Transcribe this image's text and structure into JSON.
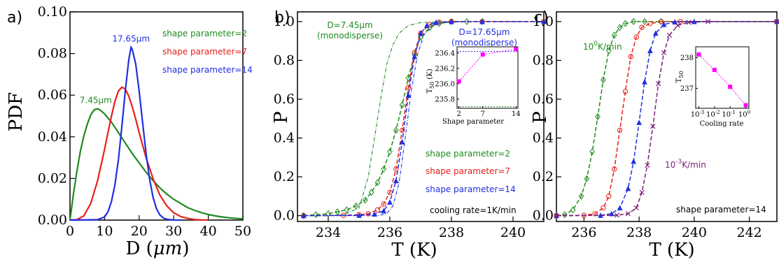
{
  "colors": {
    "green": "#1f8a1f",
    "red": "#e8201a",
    "blue": "#1f2fe0",
    "purple": "#7a1f7a",
    "magenta": "#ff00ff"
  },
  "chart_data": [
    {
      "panel_label": "a)",
      "type": "line",
      "xlabel_prefix": "D (",
      "xlabel_unit": "μm",
      "xlabel_suffix": ")",
      "ylabel": "PDF",
      "xlim": [
        0,
        50
      ],
      "ylim": [
        0,
        0.1
      ],
      "xticks": [
        0,
        10,
        20,
        30,
        40,
        50
      ],
      "yticks": [
        "0.00",
        "0.02",
        "0.04",
        "0.06",
        "0.08",
        "0.10"
      ],
      "yticks_values": [
        0,
        0.02,
        0.04,
        0.06,
        0.08,
        0.1
      ],
      "series": [
        {
          "name": "shape parameter=2",
          "color": "green",
          "x": [
            0,
            1,
            2,
            3,
            4,
            5,
            6,
            7,
            8,
            9,
            10,
            12,
            14,
            16,
            18,
            20,
            22,
            24,
            26,
            28,
            30,
            32,
            34,
            36,
            38,
            40,
            42,
            44,
            46,
            48,
            50
          ],
          "y": [
            0,
            0.0125,
            0.0235,
            0.033,
            0.0405,
            0.046,
            0.0505,
            0.053,
            0.0535,
            0.0525,
            0.051,
            0.047,
            0.042,
            0.037,
            0.032,
            0.0275,
            0.023,
            0.019,
            0.0155,
            0.0125,
            0.01,
            0.008,
            0.006,
            0.0047,
            0.0036,
            0.0027,
            0.002,
            0.0015,
            0.0011,
            0.0008,
            0.0006
          ]
        },
        {
          "name": "shape parameter=7",
          "color": "red",
          "x": [
            0,
            2,
            4,
            6,
            8,
            10,
            11,
            12,
            13,
            14,
            15,
            16,
            17,
            18,
            19,
            20,
            22,
            24,
            26,
            28,
            30,
            32,
            34,
            36,
            38,
            40
          ],
          "y": [
            0,
            0.0002,
            0.002,
            0.008,
            0.019,
            0.034,
            0.042,
            0.05,
            0.057,
            0.062,
            0.0638,
            0.063,
            0.0595,
            0.0545,
            0.0485,
            0.042,
            0.03,
            0.02,
            0.012,
            0.0068,
            0.0035,
            0.0017,
            0.0008,
            0.0003,
            0.0001,
            0
          ]
        },
        {
          "name": "shape parameter=14",
          "color": "blue",
          "x": [
            0,
            8,
            10,
            11,
            12,
            13,
            14,
            15,
            16,
            17,
            17.65,
            18,
            19,
            20,
            21,
            22,
            23,
            24,
            25,
            26,
            27,
            28,
            30,
            32
          ],
          "y": [
            0,
            0.0002,
            0.0015,
            0.004,
            0.009,
            0.017,
            0.029,
            0.045,
            0.062,
            0.077,
            0.083,
            0.082,
            0.075,
            0.062,
            0.047,
            0.032,
            0.02,
            0.011,
            0.0055,
            0.0025,
            0.001,
            0.0004,
            5e-05,
            0
          ]
        }
      ],
      "legend": [
        "shape parameter=2",
        "shape parameter=7",
        "shape parameter=14"
      ],
      "annotations": [
        {
          "text": "7.45μm",
          "color": "green",
          "x": 7.45,
          "y": 0.0535
        },
        {
          "text": "17.65μm",
          "color": "blue",
          "x": 17.65,
          "y": 0.083
        }
      ]
    },
    {
      "panel_label": "b)",
      "type": "line",
      "xlabel": "T (K)",
      "ylabel": "P",
      "xlim": [
        233,
        241
      ],
      "ylim": [
        -0.03,
        1.05
      ],
      "xticks": [
        234,
        236,
        238,
        240
      ],
      "yticks": [
        "0.0",
        "0.2",
        "0.4",
        "0.6",
        "0.8",
        "1.0"
      ],
      "yticks_values": [
        0,
        0.2,
        0.4,
        0.6,
        0.8,
        1.0
      ],
      "series": [
        {
          "name": "D=7.45μm (monodisperse)",
          "color": "green",
          "style": "dashdot",
          "x": [
            233.2,
            234.0,
            234.5,
            235.0,
            235.3,
            235.5,
            235.7,
            235.9,
            236.1,
            236.3,
            236.6,
            237.0,
            238.0,
            241.0
          ],
          "y": [
            0,
            0,
            0.005,
            0.04,
            0.2,
            0.4,
            0.6,
            0.78,
            0.88,
            0.94,
            0.98,
            0.995,
            1.0,
            1.0
          ]
        },
        {
          "name": "D=17.65μm (monodisperse)",
          "color": "blue",
          "style": "dashdot",
          "x": [
            233.2,
            235.6,
            235.9,
            236.1,
            236.3,
            236.5,
            236.7,
            236.9,
            237.1,
            237.4,
            237.8,
            238.5,
            241.0
          ],
          "y": [
            0,
            0,
            0.01,
            0.05,
            0.17,
            0.4,
            0.65,
            0.83,
            0.93,
            0.98,
            0.995,
            1.0,
            1.0
          ]
        },
        {
          "name": "shape parameter=2",
          "color": "green",
          "marker": "diamond",
          "x": [
            233.2,
            233.6,
            234.0,
            234.3,
            234.6,
            234.9,
            235.2,
            235.4,
            235.6,
            235.8,
            236.0,
            236.2,
            236.4,
            236.6,
            236.8,
            237.0,
            237.3,
            237.6,
            238.0,
            238.5,
            239.0,
            241.0
          ],
          "y": [
            0,
            0.005,
            0.01,
            0.02,
            0.03,
            0.05,
            0.08,
            0.12,
            0.17,
            0.24,
            0.33,
            0.44,
            0.57,
            0.71,
            0.83,
            0.92,
            0.97,
            0.99,
            1.0,
            1.0,
            1.0,
            1.0
          ]
        },
        {
          "name": "shape parameter=7",
          "color": "red",
          "marker": "circle",
          "x": [
            233.2,
            234.5,
            235.0,
            235.3,
            235.6,
            235.8,
            236.0,
            236.2,
            236.4,
            236.6,
            236.8,
            237.0,
            237.3,
            237.6,
            238.0,
            239.0,
            241.0
          ],
          "y": [
            0,
            0.002,
            0.005,
            0.01,
            0.03,
            0.06,
            0.12,
            0.24,
            0.44,
            0.66,
            0.84,
            0.94,
            0.985,
            0.997,
            1.0,
            1.0,
            1.0
          ]
        },
        {
          "name": "shape parameter=14",
          "color": "blue",
          "marker": "triangle",
          "x": [
            233.2,
            235.0,
            235.5,
            235.8,
            236.0,
            236.2,
            236.4,
            236.6,
            236.8,
            237.0,
            237.2,
            237.5,
            238.0,
            239.0,
            241.0
          ],
          "y": [
            0,
            0.002,
            0.008,
            0.025,
            0.07,
            0.18,
            0.38,
            0.62,
            0.82,
            0.94,
            0.98,
            0.996,
            1.0,
            1.0,
            1.0
          ]
        }
      ],
      "legend": [
        "shape parameter=2",
        "shape parameter=7",
        "shape parameter=14"
      ],
      "note": "cooling rate=1K/min",
      "annotations": [
        {
          "line1": "D=7.45μm",
          "line2": "(monodisperse)",
          "color": "green"
        },
        {
          "line1": "D=17.65μm",
          "line2": "(monodisperse)",
          "color": "blue"
        }
      ],
      "inset": {
        "type": "scatter",
        "ylabel": "T",
        "ylabel_sub": "50",
        "ylabel_unit": " (K)",
        "xlabel": "Shape parameter",
        "xlim": [
          1.6,
          14.4
        ],
        "ylim": [
          235.68,
          236.48
        ],
        "xticks": [
          2,
          7,
          14
        ],
        "yticks": [
          "235.8",
          "236.0",
          "236.2",
          "236.4"
        ],
        "yticks_values": [
          235.8,
          236.0,
          236.2,
          236.4
        ],
        "x": [
          2,
          7,
          14
        ],
        "y": [
          236.03,
          236.38,
          236.45
        ],
        "ref_lines": [
          {
            "y": 236.42,
            "color": "blue"
          },
          {
            "y": 235.7,
            "color": "green"
          }
        ]
      }
    },
    {
      "panel_label": "c)",
      "type": "line",
      "xlabel": "T (K)",
      "ylabel": "P",
      "xlim": [
        235,
        243
      ],
      "ylim": [
        -0.03,
        1.05
      ],
      "xticks": [
        236,
        238,
        240,
        242
      ],
      "yticks": [
        "0.0",
        "0.2",
        "0.4",
        "0.6",
        "0.8",
        "1.0"
      ],
      "yticks_values": [
        0,
        0.2,
        0.4,
        0.6,
        0.8,
        1.0
      ],
      "series": [
        {
          "color": "green",
          "marker": "diamond",
          "x": [
            235.0,
            235.3,
            235.6,
            235.9,
            236.1,
            236.3,
            236.5,
            236.7,
            236.9,
            237.1,
            237.3,
            237.5,
            237.8,
            238.2,
            238.8,
            243.0
          ],
          "y": [
            0,
            0.005,
            0.03,
            0.1,
            0.19,
            0.33,
            0.51,
            0.7,
            0.85,
            0.93,
            0.97,
            0.99,
            1.0,
            1.0,
            1.0,
            1.0
          ]
        },
        {
          "color": "red",
          "marker": "circle",
          "x": [
            235.0,
            236.0,
            236.4,
            236.7,
            236.9,
            237.1,
            237.3,
            237.5,
            237.7,
            237.9,
            238.1,
            238.4,
            238.8,
            239.5,
            243.0
          ],
          "y": [
            0,
            0.002,
            0.01,
            0.04,
            0.1,
            0.24,
            0.44,
            0.64,
            0.82,
            0.92,
            0.97,
            0.99,
            1.0,
            1.0,
            1.0
          ]
        },
        {
          "color": "blue",
          "marker": "triangle",
          "x": [
            235.0,
            236.6,
            237.0,
            237.3,
            237.6,
            237.8,
            238.0,
            238.2,
            238.4,
            238.6,
            238.9,
            239.3,
            240.0,
            243.0
          ],
          "y": [
            0,
            0.002,
            0.01,
            0.04,
            0.14,
            0.28,
            0.48,
            0.69,
            0.85,
            0.94,
            0.985,
            0.998,
            1.0,
            1.0
          ]
        },
        {
          "color": "purple",
          "marker": "x",
          "x": [
            235.0,
            237.2,
            237.6,
            237.9,
            238.1,
            238.3,
            238.5,
            238.7,
            238.9,
            239.1,
            239.4,
            239.8,
            240.5,
            243.0
          ],
          "y": [
            0,
            0.002,
            0.01,
            0.04,
            0.12,
            0.26,
            0.46,
            0.68,
            0.84,
            0.93,
            0.98,
            0.996,
            1.0,
            1.0
          ]
        }
      ],
      "annotations": [
        {
          "base": "10",
          "sup": "0",
          "unit": "K/min",
          "color": "green"
        },
        {
          "base": "10",
          "sup": "-3",
          "unit": "K/min",
          "color": "purple"
        }
      ],
      "note": "shape parameter=14",
      "inset": {
        "type": "scatter",
        "ylabel": "T",
        "ylabel_sub": "50",
        "xlabel": "Cooling rate",
        "xscale": "log",
        "xlim": [
          -3.2,
          0.2
        ],
        "ylim": [
          236.35,
          238.35
        ],
        "xticks_exponents": [
          "-3",
          "-2",
          "-1",
          "0"
        ],
        "xticks_values": [
          -3,
          -2,
          -1,
          0
        ],
        "yticks": [
          "237",
          "238"
        ],
        "yticks_values": [
          237,
          238
        ],
        "x": [
          0.001,
          0.01,
          0.1,
          1
        ],
        "y": [
          238.1,
          237.6,
          237.05,
          236.45
        ]
      }
    }
  ]
}
